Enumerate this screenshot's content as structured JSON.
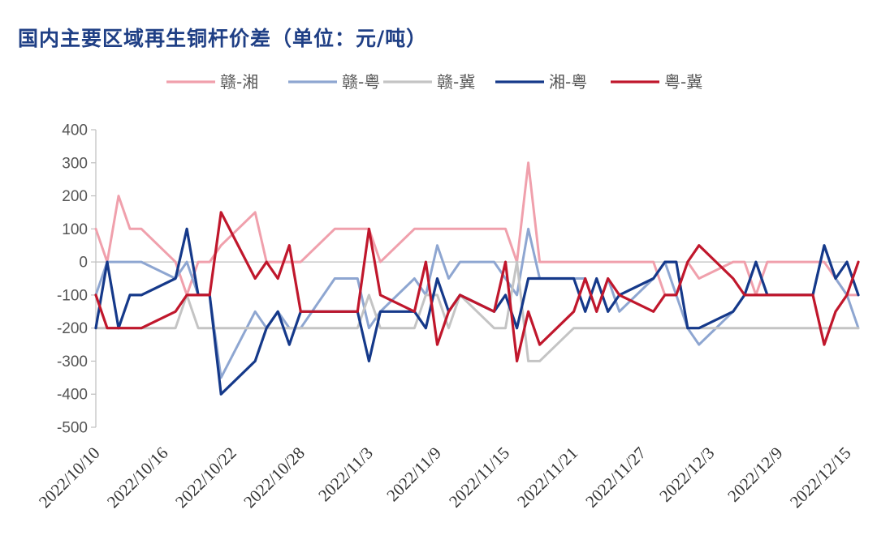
{
  "chart_data": {
    "type": "line",
    "title": "国内主要区域再生铜杆价差（单位：元/吨）",
    "xlabel": "",
    "ylabel": "",
    "ylim": [
      -500,
      400
    ],
    "yticks": [
      400,
      300,
      200,
      100,
      0,
      -100,
      -200,
      -300,
      -400,
      -500
    ],
    "x_tick_labels": [
      "2022/10/10",
      "2022/10/16",
      "2022/10/22",
      "2022/10/28",
      "2022/11/3",
      "2022/11/9",
      "2022/11/15",
      "2022/11/21",
      "2022/11/27",
      "2022/12/3",
      "2022/12/9",
      "2022/12/15"
    ],
    "legend_position": "top",
    "grid": false,
    "series": [
      {
        "name": "赣-湘",
        "color": "#f0a0ac",
        "points": [
          [
            "2022/10/10",
            100
          ],
          [
            "2022/10/11",
            0
          ],
          [
            "2022/10/12",
            200
          ],
          [
            "2022/10/13",
            100
          ],
          [
            "2022/10/14",
            100
          ],
          [
            "2022/10/17",
            0
          ],
          [
            "2022/10/18",
            -100
          ],
          [
            "2022/10/19",
            0
          ],
          [
            "2022/10/20",
            0
          ],
          [
            "2022/10/21",
            50
          ],
          [
            "2022/10/24",
            150
          ],
          [
            "2022/10/25",
            0
          ],
          [
            "2022/10/26",
            0
          ],
          [
            "2022/10/27",
            0
          ],
          [
            "2022/10/28",
            0
          ],
          [
            "2022/10/31",
            100
          ],
          [
            "2022/11/1",
            100
          ],
          [
            "2022/11/2",
            100
          ],
          [
            "2022/11/3",
            100
          ],
          [
            "2022/11/4",
            0
          ],
          [
            "2022/11/7",
            100
          ],
          [
            "2022/11/8",
            100
          ],
          [
            "2022/11/9",
            100
          ],
          [
            "2022/11/10",
            100
          ],
          [
            "2022/11/11",
            100
          ],
          [
            "2022/11/14",
            100
          ],
          [
            "2022/11/15",
            100
          ],
          [
            "2022/11/16",
            0
          ],
          [
            "2022/11/17",
            300
          ],
          [
            "2022/11/18",
            0
          ],
          [
            "2022/11/21",
            0
          ],
          [
            "2022/11/22",
            0
          ],
          [
            "2022/11/23",
            0
          ],
          [
            "2022/11/24",
            0
          ],
          [
            "2022/11/25",
            0
          ],
          [
            "2022/11/28",
            0
          ],
          [
            "2022/11/29",
            -100
          ],
          [
            "2022/11/30",
            -100
          ],
          [
            "2022/12/1",
            0
          ],
          [
            "2022/12/2",
            -50
          ],
          [
            "2022/12/5",
            0
          ],
          [
            "2022/12/6",
            0
          ],
          [
            "2022/12/7",
            -100
          ],
          [
            "2022/12/8",
            0
          ],
          [
            "2022/12/9",
            0
          ],
          [
            "2022/12/12",
            0
          ],
          [
            "2022/12/13",
            0
          ],
          [
            "2022/12/14",
            -50
          ],
          [
            "2022/12/15",
            -100
          ],
          [
            "2022/12/16",
            -100
          ]
        ]
      },
      {
        "name": "赣-粤",
        "color": "#8ea6d1",
        "points": [
          [
            "2022/10/10",
            -100
          ],
          [
            "2022/10/11",
            0
          ],
          [
            "2022/10/12",
            0
          ],
          [
            "2022/10/13",
            0
          ],
          [
            "2022/10/14",
            0
          ],
          [
            "2022/10/17",
            -50
          ],
          [
            "2022/10/18",
            0
          ],
          [
            "2022/10/19",
            -100
          ],
          [
            "2022/10/20",
            -100
          ],
          [
            "2022/10/21",
            -350
          ],
          [
            "2022/10/24",
            -150
          ],
          [
            "2022/10/25",
            -200
          ],
          [
            "2022/10/26",
            -150
          ],
          [
            "2022/10/27",
            -200
          ],
          [
            "2022/10/28",
            -200
          ],
          [
            "2022/10/31",
            -50
          ],
          [
            "2022/11/1",
            -50
          ],
          [
            "2022/11/2",
            -50
          ],
          [
            "2022/11/3",
            -200
          ],
          [
            "2022/11/4",
            -150
          ],
          [
            "2022/11/7",
            -50
          ],
          [
            "2022/11/8",
            -100
          ],
          [
            "2022/11/9",
            50
          ],
          [
            "2022/11/10",
            -50
          ],
          [
            "2022/11/11",
            0
          ],
          [
            "2022/11/14",
            0
          ],
          [
            "2022/11/15",
            -50
          ],
          [
            "2022/11/16",
            -100
          ],
          [
            "2022/11/17",
            100
          ],
          [
            "2022/11/18",
            -50
          ],
          [
            "2022/11/21",
            -50
          ],
          [
            "2022/11/22",
            -50
          ],
          [
            "2022/11/23",
            -150
          ],
          [
            "2022/11/24",
            -50
          ],
          [
            "2022/11/25",
            -150
          ],
          [
            "2022/11/28",
            -50
          ],
          [
            "2022/11/29",
            0
          ],
          [
            "2022/11/30",
            -100
          ],
          [
            "2022/12/1",
            -200
          ],
          [
            "2022/12/2",
            -250
          ],
          [
            "2022/12/5",
            -150
          ],
          [
            "2022/12/6",
            -100
          ],
          [
            "2022/12/7",
            0
          ],
          [
            "2022/12/8",
            -100
          ],
          [
            "2022/12/9",
            -100
          ],
          [
            "2022/12/12",
            -100
          ],
          [
            "2022/12/13",
            50
          ],
          [
            "2022/12/14",
            -50
          ],
          [
            "2022/12/15",
            -100
          ],
          [
            "2022/12/16",
            -200
          ]
        ]
      },
      {
        "name": "赣-冀",
        "color": "#c4c4c4",
        "points": [
          [
            "2022/10/10",
            -200
          ],
          [
            "2022/10/11",
            -200
          ],
          [
            "2022/10/12",
            -200
          ],
          [
            "2022/10/13",
            -200
          ],
          [
            "2022/10/14",
            -200
          ],
          [
            "2022/10/17",
            -200
          ],
          [
            "2022/10/18",
            -100
          ],
          [
            "2022/10/19",
            -200
          ],
          [
            "2022/10/20",
            -200
          ],
          [
            "2022/10/21",
            -200
          ],
          [
            "2022/10/24",
            -200
          ],
          [
            "2022/10/25",
            -200
          ],
          [
            "2022/10/26",
            -200
          ],
          [
            "2022/10/27",
            -200
          ],
          [
            "2022/10/28",
            -200
          ],
          [
            "2022/10/31",
            -200
          ],
          [
            "2022/11/1",
            -200
          ],
          [
            "2022/11/2",
            -200
          ],
          [
            "2022/11/3",
            -100
          ],
          [
            "2022/11/4",
            -200
          ],
          [
            "2022/11/7",
            -200
          ],
          [
            "2022/11/8",
            -100
          ],
          [
            "2022/11/9",
            -100
          ],
          [
            "2022/11/10",
            -200
          ],
          [
            "2022/11/11",
            -100
          ],
          [
            "2022/11/14",
            -200
          ],
          [
            "2022/11/15",
            -200
          ],
          [
            "2022/11/16",
            0
          ],
          [
            "2022/11/17",
            -300
          ],
          [
            "2022/11/18",
            -300
          ],
          [
            "2022/11/21",
            -200
          ],
          [
            "2022/11/22",
            -200
          ],
          [
            "2022/11/23",
            -200
          ],
          [
            "2022/11/24",
            -200
          ],
          [
            "2022/11/25",
            -200
          ],
          [
            "2022/11/28",
            -200
          ],
          [
            "2022/11/29",
            -200
          ],
          [
            "2022/11/30",
            -200
          ],
          [
            "2022/12/1",
            -200
          ],
          [
            "2022/12/2",
            -200
          ],
          [
            "2022/12/5",
            -200
          ],
          [
            "2022/12/6",
            -200
          ],
          [
            "2022/12/7",
            -200
          ],
          [
            "2022/12/8",
            -200
          ],
          [
            "2022/12/9",
            -200
          ],
          [
            "2022/12/12",
            -200
          ],
          [
            "2022/12/13",
            -200
          ],
          [
            "2022/12/14",
            -200
          ],
          [
            "2022/12/15",
            -200
          ],
          [
            "2022/12/16",
            -200
          ]
        ]
      },
      {
        "name": "湘-粤",
        "color": "#15398a",
        "points": [
          [
            "2022/10/10",
            -200
          ],
          [
            "2022/10/11",
            0
          ],
          [
            "2022/10/12",
            -200
          ],
          [
            "2022/10/13",
            -100
          ],
          [
            "2022/10/14",
            -100
          ],
          [
            "2022/10/17",
            -50
          ],
          [
            "2022/10/18",
            100
          ],
          [
            "2022/10/19",
            -100
          ],
          [
            "2022/10/20",
            -100
          ],
          [
            "2022/10/21",
            -400
          ],
          [
            "2022/10/24",
            -300
          ],
          [
            "2022/10/25",
            -200
          ],
          [
            "2022/10/26",
            -150
          ],
          [
            "2022/10/27",
            -250
          ],
          [
            "2022/10/28",
            -150
          ],
          [
            "2022/10/31",
            -150
          ],
          [
            "2022/11/1",
            -150
          ],
          [
            "2022/11/2",
            -150
          ],
          [
            "2022/11/3",
            -300
          ],
          [
            "2022/11/4",
            -150
          ],
          [
            "2022/11/7",
            -150
          ],
          [
            "2022/11/8",
            -200
          ],
          [
            "2022/11/9",
            -50
          ],
          [
            "2022/11/10",
            -150
          ],
          [
            "2022/11/11",
            -100
          ],
          [
            "2022/11/14",
            -150
          ],
          [
            "2022/11/15",
            -100
          ],
          [
            "2022/11/16",
            -200
          ],
          [
            "2022/11/17",
            -50
          ],
          [
            "2022/11/18",
            -50
          ],
          [
            "2022/11/21",
            -50
          ],
          [
            "2022/11/22",
            -150
          ],
          [
            "2022/11/23",
            -50
          ],
          [
            "2022/11/24",
            -150
          ],
          [
            "2022/11/25",
            -100
          ],
          [
            "2022/11/28",
            -50
          ],
          [
            "2022/11/29",
            0
          ],
          [
            "2022/11/30",
            0
          ],
          [
            "2022/12/1",
            -200
          ],
          [
            "2022/12/2",
            -200
          ],
          [
            "2022/12/5",
            -150
          ],
          [
            "2022/12/6",
            -100
          ],
          [
            "2022/12/7",
            0
          ],
          [
            "2022/12/8",
            -100
          ],
          [
            "2022/12/9",
            -100
          ],
          [
            "2022/12/12",
            -100
          ],
          [
            "2022/12/13",
            50
          ],
          [
            "2022/12/14",
            -50
          ],
          [
            "2022/12/15",
            0
          ],
          [
            "2022/12/16",
            -100
          ]
        ]
      },
      {
        "name": "粤-冀",
        "color": "#c0172c",
        "points": [
          [
            "2022/10/10",
            -100
          ],
          [
            "2022/10/11",
            -200
          ],
          [
            "2022/10/12",
            -200
          ],
          [
            "2022/10/13",
            -200
          ],
          [
            "2022/10/14",
            -200
          ],
          [
            "2022/10/17",
            -150
          ],
          [
            "2022/10/18",
            -100
          ],
          [
            "2022/10/19",
            -100
          ],
          [
            "2022/10/20",
            -100
          ],
          [
            "2022/10/21",
            150
          ],
          [
            "2022/10/24",
            -50
          ],
          [
            "2022/10/25",
            0
          ],
          [
            "2022/10/26",
            -50
          ],
          [
            "2022/10/27",
            50
          ],
          [
            "2022/10/28",
            -150
          ],
          [
            "2022/10/31",
            -150
          ],
          [
            "2022/11/1",
            -150
          ],
          [
            "2022/11/2",
            -150
          ],
          [
            "2022/11/3",
            100
          ],
          [
            "2022/11/4",
            -100
          ],
          [
            "2022/11/7",
            -150
          ],
          [
            "2022/11/8",
            0
          ],
          [
            "2022/11/9",
            -250
          ],
          [
            "2022/11/10",
            -150
          ],
          [
            "2022/11/11",
            -100
          ],
          [
            "2022/11/14",
            -150
          ],
          [
            "2022/11/15",
            0
          ],
          [
            "2022/11/16",
            -300
          ],
          [
            "2022/11/17",
            -150
          ],
          [
            "2022/11/18",
            -250
          ],
          [
            "2022/11/21",
            -150
          ],
          [
            "2022/11/22",
            -50
          ],
          [
            "2022/11/23",
            -150
          ],
          [
            "2022/11/24",
            -50
          ],
          [
            "2022/11/25",
            -100
          ],
          [
            "2022/11/28",
            -150
          ],
          [
            "2022/11/29",
            -100
          ],
          [
            "2022/11/30",
            -100
          ],
          [
            "2022/12/1",
            0
          ],
          [
            "2022/12/2",
            50
          ],
          [
            "2022/12/5",
            -50
          ],
          [
            "2022/12/6",
            -100
          ],
          [
            "2022/12/7",
            -100
          ],
          [
            "2022/12/8",
            -100
          ],
          [
            "2022/12/9",
            -100
          ],
          [
            "2022/12/12",
            -100
          ],
          [
            "2022/12/13",
            -250
          ],
          [
            "2022/12/14",
            -150
          ],
          [
            "2022/12/15",
            -100
          ],
          [
            "2022/12/16",
            0
          ]
        ]
      }
    ]
  }
}
